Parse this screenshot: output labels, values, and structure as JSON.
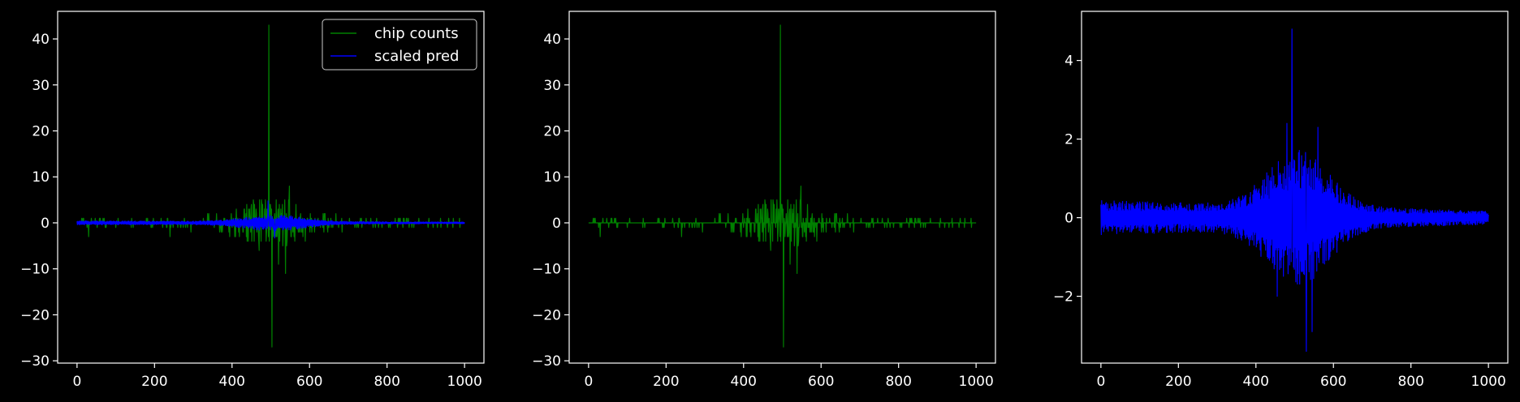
{
  "background": "#000000",
  "foreground": "#ffffff",
  "chart_data": [
    {
      "type": "line",
      "title": "",
      "xlabel": "",
      "ylabel": "",
      "xlim": [
        -50,
        1050
      ],
      "ylim": [
        -30.5,
        46
      ],
      "xticks": [
        0,
        200,
        400,
        600,
        800,
        1000
      ],
      "yticks": [
        -30,
        -20,
        -10,
        0,
        10,
        20,
        30,
        40
      ],
      "legend": {
        "position": "top-right",
        "entries": [
          "chip counts",
          "scaled pred"
        ]
      },
      "series": [
        {
          "name": "chip counts",
          "color": "#008000",
          "x_range": [
            0,
            1000
          ],
          "notable_points": [
            {
              "x": 495,
              "y": 43
            },
            {
              "x": 503,
              "y": -27
            },
            {
              "x": 538,
              "y": -11
            },
            {
              "x": 548,
              "y": 8
            },
            {
              "x": 520,
              "y": -9
            },
            {
              "x": 470,
              "y": -6
            },
            {
              "x": 455,
              "y": 5
            },
            {
              "x": 30,
              "y": -3
            },
            {
              "x": 240,
              "y": -3
            }
          ]
        },
        {
          "name": "scaled pred",
          "color": "#0000ff",
          "x_range": [
            0,
            1000
          ],
          "notable_points": [
            {
              "x": 493,
              "y": 4.8
            },
            {
              "x": 510,
              "y": -3.3
            }
          ]
        }
      ]
    },
    {
      "type": "line",
      "title": "",
      "xlabel": "",
      "ylabel": "",
      "xlim": [
        -50,
        1050
      ],
      "ylim": [
        -30.5,
        46
      ],
      "xticks": [
        0,
        200,
        400,
        600,
        800,
        1000
      ],
      "yticks": [
        -30,
        -20,
        -10,
        0,
        10,
        20,
        30,
        40
      ],
      "series": [
        {
          "color": "#008000",
          "x_range": [
            0,
            1000
          ],
          "notable_points": [
            {
              "x": 495,
              "y": 43
            },
            {
              "x": 503,
              "y": -27
            },
            {
              "x": 538,
              "y": -11
            },
            {
              "x": 548,
              "y": 8
            },
            {
              "x": 520,
              "y": -9
            },
            {
              "x": 470,
              "y": -6
            },
            {
              "x": 455,
              "y": 5
            },
            {
              "x": 30,
              "y": -3
            },
            {
              "x": 240,
              "y": -3
            }
          ]
        }
      ]
    },
    {
      "type": "line",
      "title": "",
      "xlabel": "",
      "ylabel": "",
      "xlim": [
        -50,
        1050
      ],
      "ylim": [
        -3.7,
        5.25
      ],
      "xticks": [
        0,
        200,
        400,
        600,
        800,
        1000
      ],
      "yticks": [
        -2,
        0,
        2,
        4
      ],
      "series": [
        {
          "color": "#0000ff",
          "x_range": [
            0,
            1000
          ],
          "notable_points": [
            {
              "x": 493,
              "y": 4.8
            },
            {
              "x": 530,
              "y": -3.4
            },
            {
              "x": 545,
              "y": -2.9
            },
            {
              "x": 480,
              "y": 2.4
            },
            {
              "x": 560,
              "y": 2.3
            },
            {
              "x": 455,
              "y": -2.0
            }
          ]
        }
      ]
    }
  ]
}
